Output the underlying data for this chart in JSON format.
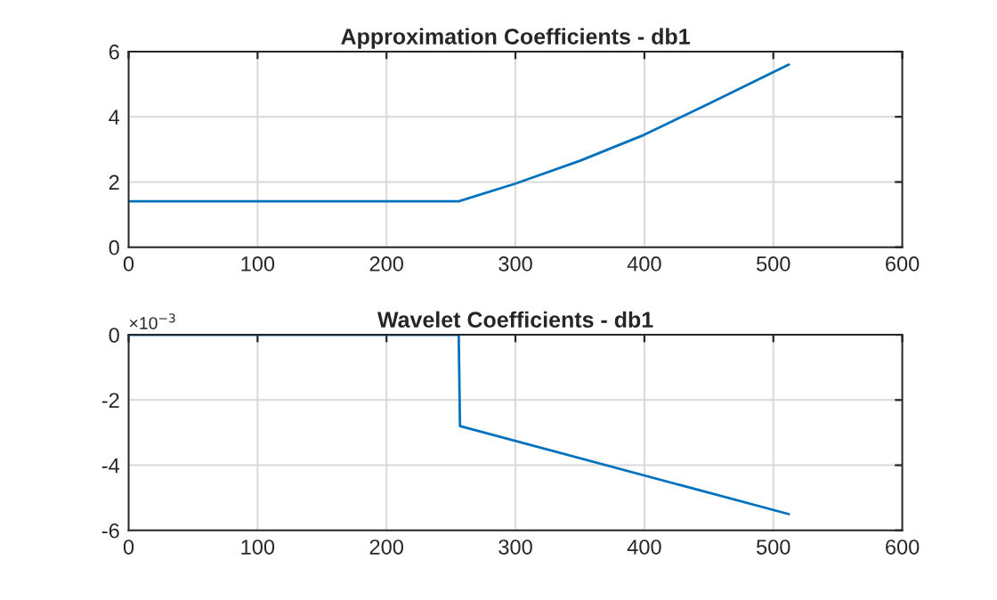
{
  "chart_data": [
    {
      "type": "line",
      "title": "Approximation Coefficients - db1",
      "x": [
        1,
        256,
        300,
        350,
        400,
        450,
        512
      ],
      "series": [
        {
          "color": "#0072bd",
          "values": [
            1.41,
            1.41,
            1.95,
            2.65,
            3.45,
            4.4,
            5.6
          ]
        }
      ],
      "xlim": [
        0,
        600
      ],
      "xticks": [
        0,
        100,
        200,
        300,
        400,
        500,
        600
      ],
      "ylim": [
        0,
        6
      ],
      "yticks": [
        0,
        2,
        4,
        6
      ],
      "grid": true,
      "legend": false
    },
    {
      "type": "line",
      "title": "Wavelet Coefficients - db1",
      "x": [
        1,
        256,
        257,
        512
      ],
      "series": [
        {
          "color": "#0072bd",
          "values": [
            0,
            0,
            -2.8,
            -5.5
          ]
        }
      ],
      "annotations": [
        "×10$^{−3}$"
      ],
      "xlim": [
        0,
        600
      ],
      "xticks": [
        0,
        100,
        200,
        300,
        400,
        500,
        600
      ],
      "ylim": [
        -6,
        0
      ],
      "yticks": [
        -6,
        -4,
        -2,
        0
      ],
      "grid": true,
      "legend": false
    }
  ]
}
